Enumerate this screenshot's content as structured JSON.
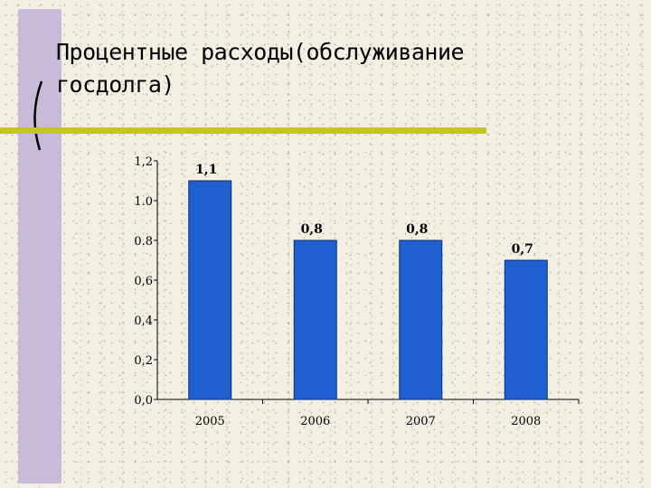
{
  "slide": {
    "title": "Процентные расходы(обслуживание госдолга)"
  },
  "colors": {
    "bar": "#1f5fd0",
    "bar_edge": "#0b2e78",
    "side_bar": "#c8bbd9",
    "rule": "#c4c52a"
  },
  "chart_data": {
    "type": "bar",
    "categories": [
      "2005",
      "2006",
      "2007",
      "2008"
    ],
    "values": [
      1.1,
      0.8,
      0.8,
      0.7
    ],
    "value_labels": [
      "1,1",
      "0,8",
      "0,8",
      "0,7"
    ],
    "ylim": [
      0,
      1.2
    ],
    "yticks": [
      {
        "value": 0.0,
        "label": "0,0"
      },
      {
        "value": 0.2,
        "label": "0,2"
      },
      {
        "value": 0.4,
        "label": "0,4"
      },
      {
        "value": 0.6,
        "label": "0,6"
      },
      {
        "value": 0.8,
        "label": "0.8"
      },
      {
        "value": 1.0,
        "label": "1.0"
      },
      {
        "value": 1.2,
        "label": "1,2"
      }
    ],
    "grid": false,
    "legend": false
  }
}
